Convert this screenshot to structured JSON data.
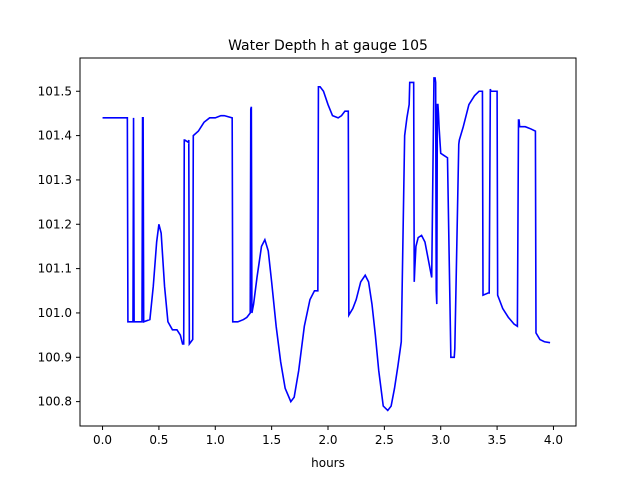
{
  "chart_data": {
    "type": "line",
    "title": "Water Depth h at gauge 105",
    "xlabel": "hours",
    "ylabel": "",
    "xlim": [
      -0.2,
      4.2
    ],
    "ylim": [
      100.745,
      101.575
    ],
    "xticks": [
      "0.0",
      "0.5",
      "1.0",
      "1.5",
      "2.0",
      "2.5",
      "3.0",
      "3.5",
      "4.0"
    ],
    "yticks": [
      "100.8",
      "100.9",
      "101.0",
      "101.1",
      "101.2",
      "101.3",
      "101.4",
      "101.5"
    ],
    "grid": false,
    "line_color": "#0000ff",
    "series": [
      {
        "x": [
          0.0,
          0.22,
          0.225,
          0.27,
          0.275,
          0.28,
          0.285,
          0.35,
          0.355,
          0.36,
          0.365,
          0.42,
          0.45,
          0.48,
          0.5,
          0.52,
          0.55,
          0.58,
          0.62,
          0.66,
          0.69,
          0.71,
          0.72,
          0.725,
          0.73,
          0.76,
          0.765,
          0.77,
          0.8,
          0.805,
          0.85,
          0.9,
          0.95,
          1.0,
          1.05,
          1.08,
          1.15,
          1.155,
          1.2,
          1.25,
          1.28,
          1.31,
          1.315,
          1.32,
          1.325,
          1.34,
          1.37,
          1.41,
          1.44,
          1.47,
          1.5,
          1.54,
          1.58,
          1.62,
          1.67,
          1.7,
          1.74,
          1.79,
          1.84,
          1.88,
          1.91,
          1.915,
          1.93,
          1.96,
          2.0,
          2.04,
          2.09,
          2.12,
          2.15,
          2.18,
          2.185,
          2.22,
          2.25,
          2.29,
          2.33,
          2.36,
          2.39,
          2.42,
          2.45,
          2.49,
          2.53,
          2.56,
          2.59,
          2.62,
          2.65,
          2.68,
          2.7,
          2.72,
          2.725,
          2.76,
          2.765,
          2.77,
          2.78,
          2.8,
          2.83,
          2.86,
          2.89,
          2.92,
          2.94,
          2.95,
          2.955,
          2.96,
          2.965,
          2.97,
          2.975,
          2.98,
          2.985,
          2.99,
          2.995,
          3.0,
          3.03,
          3.06,
          3.09,
          3.12,
          3.125,
          3.16,
          3.165,
          3.2,
          3.25,
          3.3,
          3.34,
          3.37,
          3.375,
          3.42,
          3.43,
          3.44,
          3.445,
          3.45,
          3.5,
          3.505,
          3.52,
          3.55,
          3.6,
          3.65,
          3.68,
          3.69,
          3.695,
          3.7,
          3.75,
          3.8,
          3.84,
          3.845,
          3.88,
          3.92,
          3.97
        ],
        "y": [
          101.44,
          101.44,
          100.98,
          100.98,
          101.44,
          100.98,
          100.98,
          100.98,
          101.44,
          101.44,
          100.98,
          100.985,
          101.06,
          101.16,
          101.2,
          101.18,
          101.06,
          100.98,
          100.962,
          100.962,
          100.95,
          100.93,
          100.93,
          101.39,
          101.39,
          101.385,
          101.39,
          100.93,
          100.94,
          101.4,
          101.41,
          101.43,
          101.44,
          101.44,
          101.445,
          101.445,
          101.44,
          100.98,
          100.98,
          100.985,
          100.99,
          101.0,
          101.46,
          101.465,
          101.0,
          101.02,
          101.08,
          101.15,
          101.165,
          101.14,
          101.07,
          100.97,
          100.89,
          100.83,
          100.8,
          100.81,
          100.87,
          100.97,
          101.03,
          101.05,
          101.05,
          101.51,
          101.51,
          101.5,
          101.47,
          101.445,
          101.44,
          101.445,
          101.455,
          101.455,
          100.995,
          101.01,
          101.03,
          101.07,
          101.085,
          101.07,
          101.02,
          100.95,
          100.87,
          100.79,
          100.78,
          100.79,
          100.83,
          100.88,
          100.935,
          101.4,
          101.44,
          101.47,
          101.52,
          101.52,
          101.07,
          101.1,
          101.15,
          101.17,
          101.175,
          101.16,
          101.12,
          101.08,
          101.53,
          101.53,
          101.52,
          101.05,
          101.02,
          101.47,
          101.47,
          101.45,
          101.42,
          101.4,
          101.38,
          101.36,
          101.355,
          101.35,
          100.9,
          100.9,
          100.92,
          101.38,
          101.39,
          101.42,
          101.47,
          101.49,
          101.5,
          101.5,
          101.04,
          101.045,
          101.045,
          101.505,
          101.5,
          101.5,
          101.5,
          101.04,
          101.03,
          101.01,
          100.99,
          100.975,
          100.97,
          101.435,
          101.435,
          101.42,
          101.42,
          101.415,
          101.41,
          100.955,
          100.94,
          100.935,
          100.933
        ]
      }
    ]
  }
}
